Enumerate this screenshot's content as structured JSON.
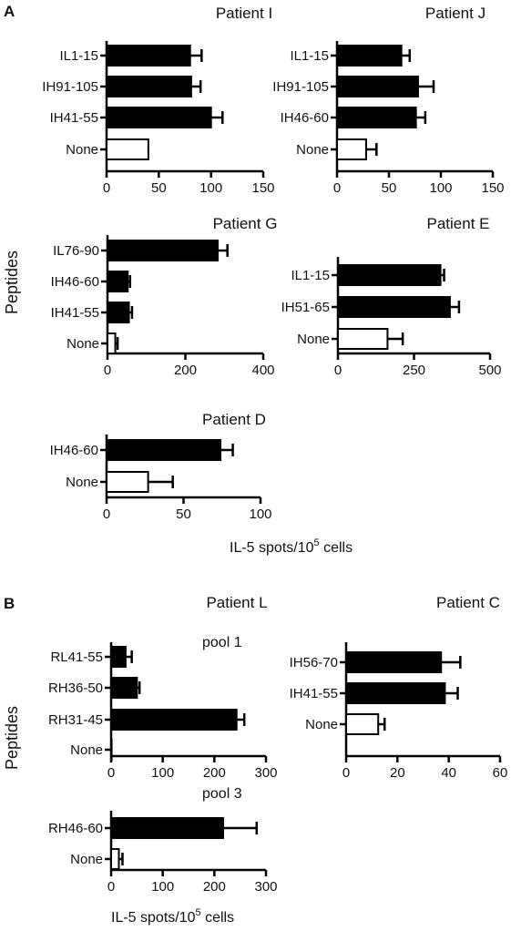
{
  "figure": {
    "panel_a_label": "A",
    "panel_b_label": "B",
    "y_label_a": "Peptides",
    "y_label_b": "Peptides",
    "x_label_base": "IL-5 spots/10",
    "x_label_sup": "5",
    "x_label_tail": " cells",
    "pool1_label": "pool 1",
    "pool3_label": "pool 3",
    "colors": {
      "filled": "#000000",
      "open": "#ffffff",
      "stroke": "#000000"
    }
  },
  "chart_data": [
    {
      "id": "I",
      "type": "bar",
      "orientation": "horizontal",
      "title": "Patient I",
      "categories": [
        "IL1-15",
        "IH91-105",
        "IH41-55",
        "None"
      ],
      "values": [
        80,
        81,
        100,
        40
      ],
      "errors": [
        11,
        9,
        11,
        0
      ],
      "filled": [
        true,
        true,
        true,
        false
      ],
      "xlim": [
        0,
        150
      ],
      "xticks": [
        0,
        50,
        100,
        150
      ]
    },
    {
      "id": "J",
      "type": "bar",
      "orientation": "horizontal",
      "title": "Patient J",
      "categories": [
        "IL1-15",
        "IH91-105",
        "IH46-60",
        "None"
      ],
      "values": [
        62,
        78,
        76,
        28
      ],
      "errors": [
        8,
        15,
        9,
        10
      ],
      "filled": [
        true,
        true,
        true,
        false
      ],
      "xlim": [
        0,
        150
      ],
      "xticks": [
        0,
        50,
        100,
        150
      ]
    },
    {
      "id": "G",
      "type": "bar",
      "orientation": "horizontal",
      "title": "Patient G",
      "categories": [
        "IL76-90",
        "IH46-60",
        "IH41-55",
        "None"
      ],
      "values": [
        283,
        52,
        55,
        20
      ],
      "errors": [
        25,
        6,
        8,
        6
      ],
      "filled": [
        true,
        true,
        true,
        false
      ],
      "xlim": [
        0,
        400
      ],
      "xticks": [
        0,
        200,
        400
      ]
    },
    {
      "id": "E",
      "type": "bar",
      "orientation": "horizontal",
      "title": "Patient E",
      "categories": [
        "IL1-15",
        "IH51-65",
        "None"
      ],
      "values": [
        337,
        368,
        163
      ],
      "errors": [
        12,
        30,
        50
      ],
      "filled": [
        true,
        true,
        false
      ],
      "xlim": [
        0,
        500
      ],
      "xticks": [
        0,
        250,
        500
      ]
    },
    {
      "id": "D",
      "type": "bar",
      "orientation": "horizontal",
      "title": "Patient D",
      "categories": [
        "IH46-60",
        "None"
      ],
      "values": [
        74,
        27
      ],
      "errors": [
        8,
        16
      ],
      "filled": [
        true,
        false
      ],
      "xlim": [
        0,
        100
      ],
      "xticks": [
        0,
        50,
        100
      ]
    },
    {
      "id": "L1",
      "type": "bar",
      "orientation": "horizontal",
      "title": "Patient L",
      "categories": [
        "RL41-55",
        "RH36-50",
        "RH31-45",
        "None"
      ],
      "values": [
        28,
        50,
        243,
        1
      ],
      "errors": [
        12,
        5,
        15,
        0
      ],
      "filled": [
        true,
        true,
        true,
        false
      ],
      "xlim": [
        0,
        300
      ],
      "xticks": [
        0,
        100,
        200,
        300
      ]
    },
    {
      "id": "C",
      "type": "bar",
      "orientation": "horizontal",
      "title": "Patient C",
      "categories": [
        "IH56-70",
        "IH41-55",
        "None"
      ],
      "values": [
        37,
        38.5,
        12.5
      ],
      "errors": [
        7.5,
        5,
        2.5
      ],
      "filled": [
        true,
        true,
        false
      ],
      "xlim": [
        0,
        60
      ],
      "xticks": [
        0,
        20,
        40,
        60
      ]
    },
    {
      "id": "L3",
      "type": "bar",
      "orientation": "horizontal",
      "title": "",
      "categories": [
        "RH46-60",
        "None"
      ],
      "values": [
        217,
        15
      ],
      "errors": [
        65,
        7
      ],
      "filled": [
        true,
        false
      ],
      "xlim": [
        0,
        300
      ],
      "xticks": [
        0,
        100,
        200,
        300
      ]
    }
  ]
}
